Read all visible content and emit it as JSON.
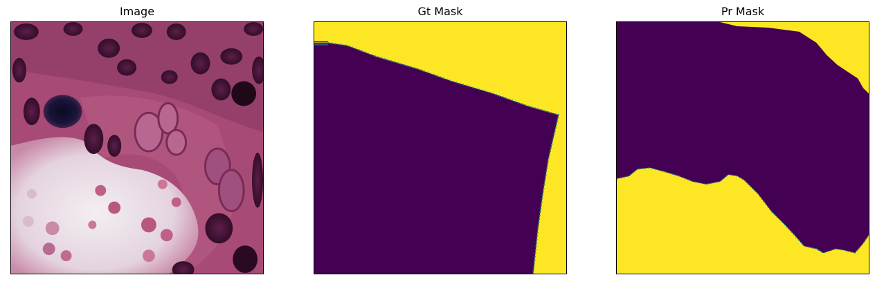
{
  "panels": [
    {
      "title": "Image"
    },
    {
      "title": "Gt Mask"
    },
    {
      "title": "Pr Mask"
    }
  ],
  "colors": {
    "mask_background": "#440154",
    "mask_foreground": "#fde725",
    "mask_edge": "#21918c",
    "tissue_pink": "#b4577f",
    "tissue_dark": "#5a1e46",
    "nuclei": "#3a1030",
    "lumen": "#e9dfe6"
  }
}
